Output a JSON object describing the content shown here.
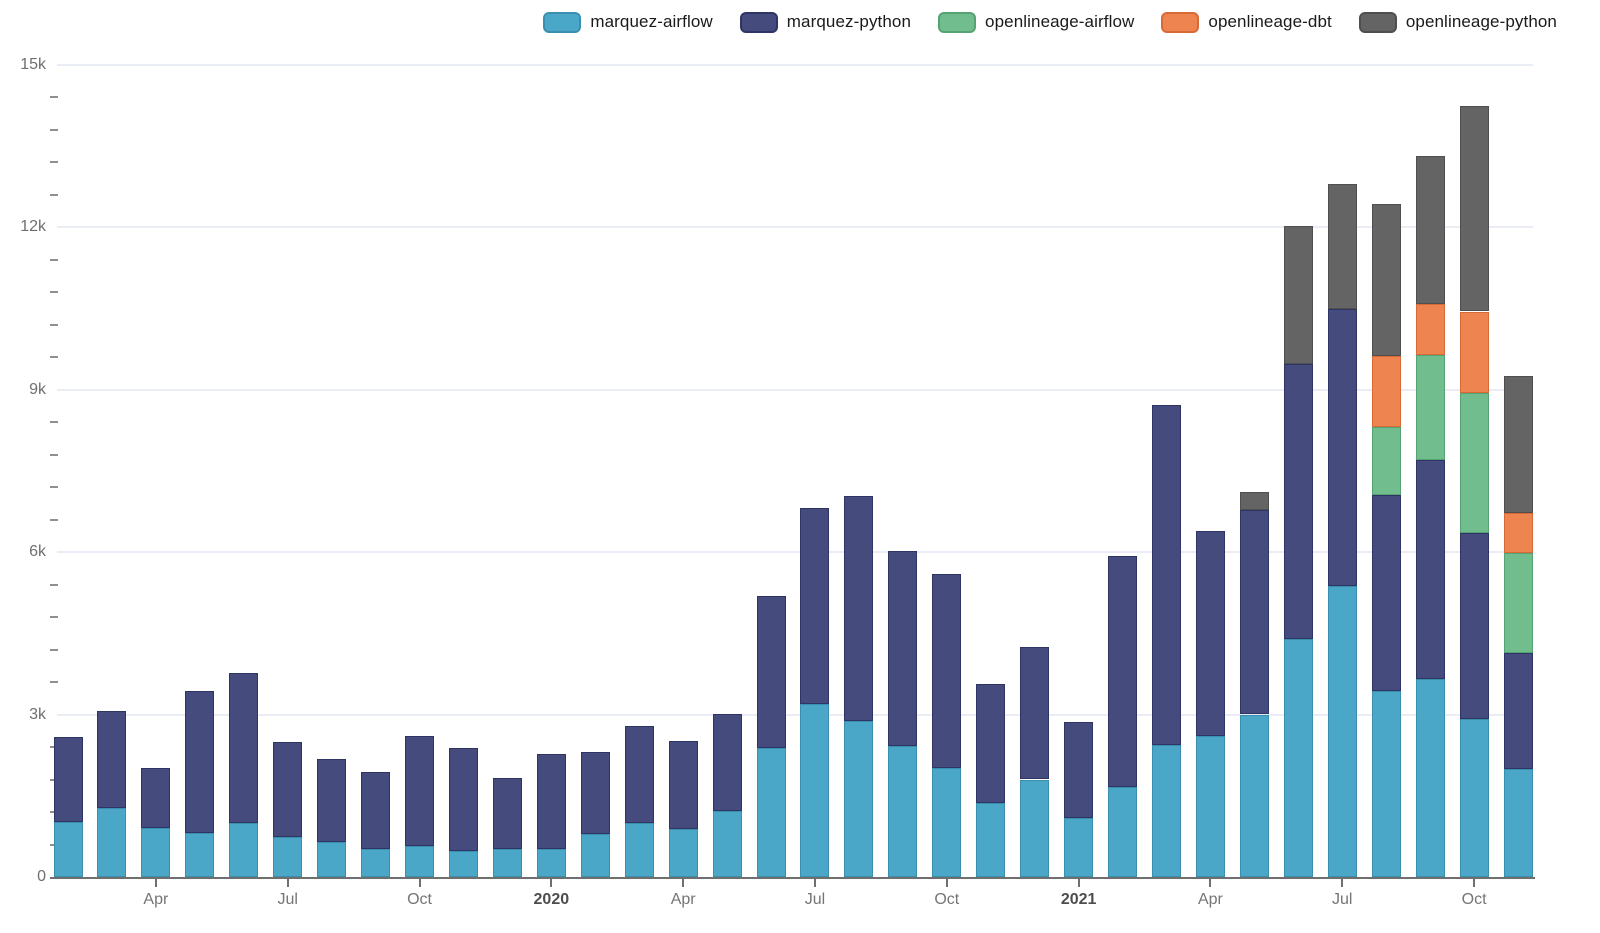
{
  "chart_data": {
    "type": "bar",
    "stacked": true,
    "title": "",
    "xlabel": "",
    "ylabel": "",
    "ylim": [
      0,
      15000
    ],
    "grid": true,
    "legend_position": "top",
    "x": [
      "2019-02",
      "2019-03",
      "2019-04",
      "2019-05",
      "2019-06",
      "2019-07",
      "2019-08",
      "2019-09",
      "2019-10",
      "2019-11",
      "2019-12",
      "2020-01",
      "2020-02",
      "2020-03",
      "2020-04",
      "2020-05",
      "2020-06",
      "2020-07",
      "2020-08",
      "2020-09",
      "2020-10",
      "2020-11",
      "2020-12",
      "2021-01",
      "2021-02",
      "2021-03",
      "2021-04",
      "2021-05",
      "2021-06",
      "2021-07",
      "2021-08",
      "2021-09",
      "2021-10",
      "2021-11"
    ],
    "series": [
      {
        "name": "marquez-airflow",
        "color": "#4BA7C7",
        "border": "#3B8FAE",
        "values": [
          1020,
          1280,
          900,
          810,
          990,
          730,
          650,
          510,
          580,
          480,
          520,
          520,
          790,
          990,
          890,
          1220,
          2390,
          3190,
          2880,
          2410,
          2010,
          1360,
          1800,
          1090,
          1660,
          2440,
          2600,
          3000,
          4390,
          5380,
          3440,
          3660,
          2910,
          1990
        ]
      },
      {
        "name": "marquez-python",
        "color": "#454B7D",
        "border": "#2E3564",
        "values": [
          1570,
          1790,
          1110,
          2630,
          2780,
          1770,
          1530,
          1420,
          2020,
          1910,
          1300,
          1750,
          1520,
          1800,
          1630,
          1790,
          2800,
          3630,
          4150,
          3610,
          3580,
          2200,
          2440,
          1780,
          4270,
          6280,
          3780,
          3770,
          5080,
          5110,
          3610,
          4040,
          3440,
          2150
        ]
      },
      {
        "name": "openlineage-airflow",
        "color": "#72BD8D",
        "border": "#55A273",
        "values": [
          0,
          0,
          0,
          0,
          0,
          0,
          0,
          0,
          0,
          0,
          0,
          0,
          0,
          0,
          0,
          0,
          0,
          0,
          0,
          0,
          0,
          0,
          0,
          0,
          0,
          0,
          0,
          0,
          0,
          0,
          1260,
          1930,
          2580,
          1850
        ]
      },
      {
        "name": "openlineage-dbt",
        "color": "#EE8450",
        "border": "#D96A38",
        "values": [
          0,
          0,
          0,
          0,
          0,
          0,
          0,
          0,
          0,
          0,
          0,
          0,
          0,
          0,
          0,
          0,
          0,
          0,
          0,
          0,
          0,
          0,
          0,
          0,
          0,
          0,
          0,
          0,
          0,
          0,
          1310,
          940,
          1510,
          730
        ]
      },
      {
        "name": "openlineage-python",
        "color": "#646464",
        "border": "#4f4f4f",
        "values": [
          0,
          0,
          0,
          0,
          0,
          0,
          0,
          0,
          0,
          0,
          0,
          0,
          0,
          0,
          0,
          0,
          0,
          0,
          0,
          0,
          0,
          0,
          0,
          0,
          0,
          0,
          0,
          330,
          2550,
          2310,
          2810,
          2740,
          3800,
          2530
        ]
      }
    ],
    "y_major_ticks": [
      {
        "value": 0,
        "label": "0"
      },
      {
        "value": 3000,
        "label": "3k"
      },
      {
        "value": 6000,
        "label": "6k"
      },
      {
        "value": 9000,
        "label": "9k"
      },
      {
        "value": 12000,
        "label": "12k"
      },
      {
        "value": 15000,
        "label": "15k"
      }
    ],
    "y_minor_tick_interval": 600,
    "x_ticks": [
      {
        "index": 2,
        "label": "Apr",
        "bold": false
      },
      {
        "index": 5,
        "label": "Jul",
        "bold": false
      },
      {
        "index": 8,
        "label": "Oct",
        "bold": false
      },
      {
        "index": 11,
        "label": "2020",
        "bold": true
      },
      {
        "index": 14,
        "label": "Apr",
        "bold": false
      },
      {
        "index": 17,
        "label": "Jul",
        "bold": false
      },
      {
        "index": 20,
        "label": "Oct",
        "bold": false
      },
      {
        "index": 23,
        "label": "2021",
        "bold": true
      },
      {
        "index": 26,
        "label": "Apr",
        "bold": false
      },
      {
        "index": 29,
        "label": "Jul",
        "bold": false
      },
      {
        "index": 32,
        "label": "Oct",
        "bold": false
      }
    ],
    "colors": {
      "background": "#FFFFFF",
      "gridline": "#E8EBF4",
      "axis_line": "#6F6F6F",
      "minor_tick": "#8F8F8F",
      "tick_label": "#6F6F6F",
      "year_label": "#4D4D4D",
      "legend_text": "#1A1A1A"
    }
  }
}
